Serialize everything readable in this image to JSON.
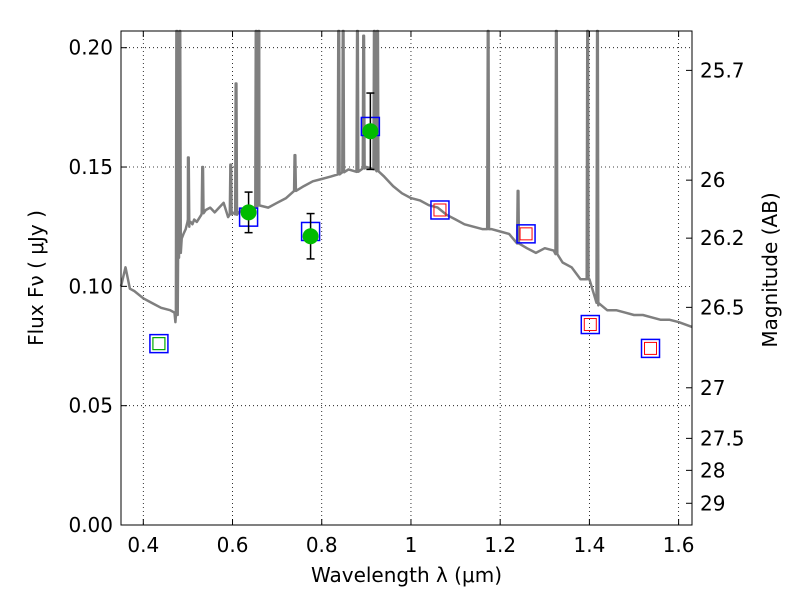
{
  "chart_data": {
    "type": "scatter",
    "xlabel": "Wavelength  λ (μm)",
    "ylabel": "Flux  Fν  ( μJy )",
    "y2label": "Magnitude (AB)",
    "xlim": [
      0.35,
      1.63
    ],
    "ylim": [
      0.0,
      0.207
    ],
    "grid": true,
    "x_ticks": [
      0.4,
      0.6,
      0.8,
      1.0,
      1.2,
      1.4,
      1.6
    ],
    "x_tick_labels": [
      "0.4",
      "0.6",
      "0.8",
      "1",
      "1.2",
      "1.4",
      "1.6"
    ],
    "y_ticks": [
      0.0,
      0.05,
      0.1,
      0.15,
      0.2
    ],
    "y_tick_labels": [
      "0.00",
      "0.05",
      "0.10",
      "0.15",
      "0.20"
    ],
    "y2_ticks": [
      {
        "label": "25.7",
        "flux": 0.1905
      },
      {
        "label": "26",
        "flux": 0.1445
      },
      {
        "label": "26.2",
        "flux": 0.1202
      },
      {
        "label": "26.5",
        "flux": 0.0912
      },
      {
        "label": "27",
        "flux": 0.0575
      },
      {
        "label": "27.5",
        "flux": 0.0363
      },
      {
        "label": "28",
        "flux": 0.0229
      },
      {
        "label": "29",
        "flux": 0.0091
      }
    ],
    "series": [
      {
        "style": "model-spectrum-line",
        "color": "#7f7f7f",
        "x": [
          0.35,
          0.36,
          0.37,
          0.38,
          0.4,
          0.42,
          0.44,
          0.46,
          0.47,
          0.472,
          0.475,
          0.478,
          0.48,
          0.482,
          0.486,
          0.49,
          0.495,
          0.5,
          0.503,
          0.506,
          0.51,
          0.514,
          0.52,
          0.53,
          0.54,
          0.55,
          0.56,
          0.57,
          0.58,
          0.59,
          0.6,
          0.61,
          0.62,
          0.63,
          0.65,
          0.66,
          0.68,
          0.7,
          0.72,
          0.74,
          0.76,
          0.78,
          0.8,
          0.82,
          0.84,
          0.86,
          0.88,
          0.9,
          0.92,
          0.94,
          0.96,
          0.98,
          1.0,
          1.02,
          1.04,
          1.06,
          1.08,
          1.1,
          1.12,
          1.14,
          1.16,
          1.18,
          1.2,
          1.22,
          1.24,
          1.26,
          1.28,
          1.3,
          1.32,
          1.34,
          1.36,
          1.38,
          1.4,
          1.42,
          1.44,
          1.46,
          1.48,
          1.5,
          1.52,
          1.54,
          1.56,
          1.58,
          1.6,
          1.63
        ],
        "y": [
          0.1,
          0.108,
          0.099,
          0.098,
          0.095,
          0.093,
          0.091,
          0.09,
          0.089,
          0.085,
          0.088,
          0.115,
          0.112,
          0.114,
          0.12,
          0.122,
          0.124,
          0.128,
          0.125,
          0.127,
          0.126,
          0.128,
          0.127,
          0.13,
          0.132,
          0.133,
          0.131,
          0.133,
          0.135,
          0.129,
          0.131,
          0.13,
          0.132,
          0.133,
          0.133,
          0.134,
          0.133,
          0.135,
          0.137,
          0.14,
          0.142,
          0.144,
          0.145,
          0.146,
          0.147,
          0.149,
          0.148,
          0.15,
          0.149,
          0.146,
          0.142,
          0.139,
          0.137,
          0.136,
          0.134,
          0.133,
          0.13,
          0.128,
          0.126,
          0.125,
          0.124,
          0.124,
          0.123,
          0.122,
          0.118,
          0.116,
          0.114,
          0.116,
          0.115,
          0.11,
          0.108,
          0.103,
          0.103,
          0.092,
          0.09,
          0.09,
          0.089,
          0.088,
          0.088,
          0.087,
          0.086,
          0.086,
          0.085,
          0.083
        ],
        "emission_lines": [
          {
            "x": 0.475,
            "peak": 0.207
          },
          {
            "x": 0.482,
            "peak": 0.207
          },
          {
            "x": 0.501,
            "peak": 0.154
          },
          {
            "x": 0.533,
            "peak": 0.15
          },
          {
            "x": 0.596,
            "peak": 0.151
          },
          {
            "x": 0.608,
            "peak": 0.185
          },
          {
            "x": 0.653,
            "peak": 0.207
          },
          {
            "x": 0.659,
            "peak": 0.207
          },
          {
            "x": 0.74,
            "peak": 0.155
          },
          {
            "x": 0.838,
            "peak": 0.207
          },
          {
            "x": 0.848,
            "peak": 0.207
          },
          {
            "x": 0.88,
            "peak": 0.207
          },
          {
            "x": 0.894,
            "peak": 0.205
          },
          {
            "x": 0.918,
            "peak": 0.207
          },
          {
            "x": 0.925,
            "peak": 0.207
          },
          {
            "x": 1.173,
            "peak": 0.207
          },
          {
            "x": 1.24,
            "peak": 0.14
          },
          {
            "x": 1.326,
            "peak": 0.207
          },
          {
            "x": 1.396,
            "peak": 0.207
          },
          {
            "x": 1.418,
            "peak": 0.207
          }
        ]
      },
      {
        "style": "model-photometry-blue-squares",
        "color": "#0000ff",
        "x": [
          0.435,
          0.636,
          0.775,
          0.909,
          1.065,
          1.258,
          1.402,
          1.537
        ],
        "y": [
          0.076,
          0.129,
          0.123,
          0.167,
          0.132,
          0.122,
          0.084,
          0.074
        ]
      },
      {
        "style": "observed-photometry-green-circles",
        "color": "#00bb00",
        "x": [
          0.636,
          0.775,
          0.909
        ],
        "y": [
          0.131,
          0.121,
          0.165
        ],
        "yerr": [
          0.0085,
          0.0095,
          0.016
        ]
      },
      {
        "style": "upper-limit-red-squares",
        "color": "#ff0000",
        "x": [
          1.065,
          1.258,
          1.402,
          1.537
        ],
        "y": [
          0.132,
          0.122,
          0.084,
          0.074
        ]
      },
      {
        "style": "green-open-square",
        "color": "#00aa00",
        "x": [
          0.435
        ],
        "y": [
          0.076
        ]
      }
    ]
  }
}
